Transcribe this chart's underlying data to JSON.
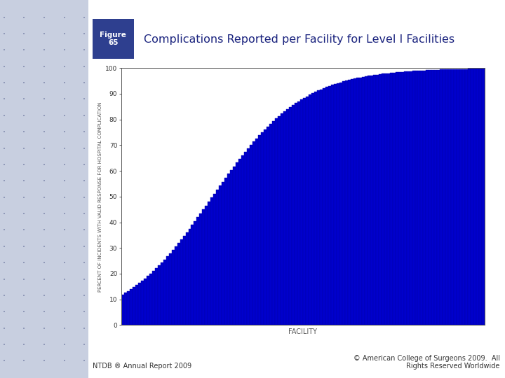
{
  "title": "Complications Reported per Facility for Level I Facilities",
  "figure_label": "Figure\n65",
  "xlabel": "FACILITY",
  "ylabel": "PERCENT OF INCIDENTS WITH VALID RESPONSE FOR HOSPITAL COMPLICATION",
  "ylim": [
    0,
    100
  ],
  "yticks": [
    0,
    10,
    20,
    30,
    40,
    50,
    60,
    70,
    80,
    90,
    100
  ],
  "bar_color": "#0000CC",
  "bar_edge_color": "#0000AA",
  "n_bars": 130,
  "page_bg_color": "#c8cfe0",
  "title_color": "#1a237e",
  "footer_left": "NTDB ® Annual Report 2009",
  "footer_right": "© American College of Surgeons 2009.  All\nRights Reserved Worldwide",
  "figure_box_color": "#2e3f8f",
  "figure_label_color": "#ffffff",
  "plot_area_bg": "#ffffff",
  "axis_color": "#555555",
  "tick_label_color": "#333333"
}
